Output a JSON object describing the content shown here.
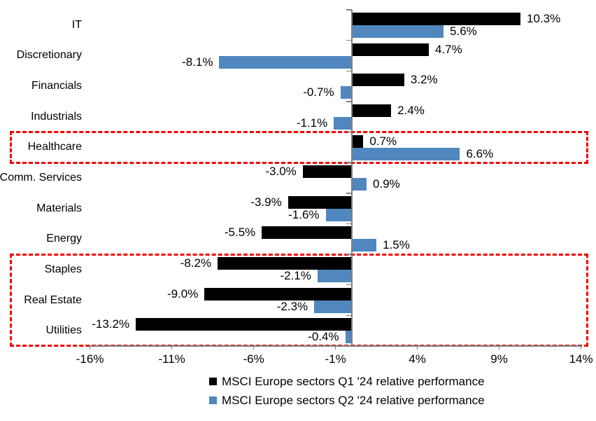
{
  "chart_data": {
    "type": "bar",
    "orientation": "horizontal",
    "categories": [
      "IT",
      "Discretionary",
      "Financials",
      "Industrials",
      "Healthcare",
      "Comm. Services",
      "Materials",
      "Energy",
      "Staples",
      "Real Estate",
      "Utilities"
    ],
    "series": [
      {
        "name": "MSCI Europe sectors Q1 '24 relative performance",
        "color": "#000000",
        "values": [
          10.3,
          4.7,
          3.2,
          2.4,
          0.7,
          -3.0,
          -3.9,
          -5.5,
          -8.2,
          -9.0,
          -13.2
        ],
        "labels": [
          "10.3%",
          "4.7%",
          "3.2%",
          "2.4%",
          "0.7%",
          "-3.0%",
          "-3.9%",
          "-5.5%",
          "-8.2%",
          "-9.0%",
          "-13.2%"
        ]
      },
      {
        "name": "MSCI Europe sectors Q2 '24 relative performance",
        "color": "#5087BE",
        "values": [
          5.6,
          -8.1,
          -0.7,
          -1.1,
          6.6,
          0.9,
          -1.6,
          1.5,
          -2.1,
          -2.3,
          -0.4
        ],
        "labels": [
          "5.6%",
          "-8.1%",
          "-0.7%",
          "-1.1%",
          "6.6%",
          "0.9%",
          "-1.6%",
          "1.5%",
          "-2.1%",
          "-2.3%",
          "-0.4%"
        ]
      }
    ],
    "x_axis": {
      "min": -16,
      "max": 14,
      "tick_values": [
        -16,
        -11,
        -6,
        -1,
        4,
        9,
        14
      ],
      "tick_labels": [
        "-16%",
        "-11%",
        "-6%",
        "-1%",
        "4%",
        "9%",
        "14%"
      ]
    },
    "grid": false,
    "legend_position": "bottom",
    "axis_color": "#808080",
    "highlights": [
      {
        "name": "healthcare-box",
        "rows": [
          "Healthcare"
        ],
        "color": "#F20000",
        "style": "dashed"
      },
      {
        "name": "defensives-box",
        "rows": [
          "Staples",
          "Real Estate",
          "Utilities"
        ],
        "color": "#F20000",
        "style": "dashed"
      }
    ]
  }
}
